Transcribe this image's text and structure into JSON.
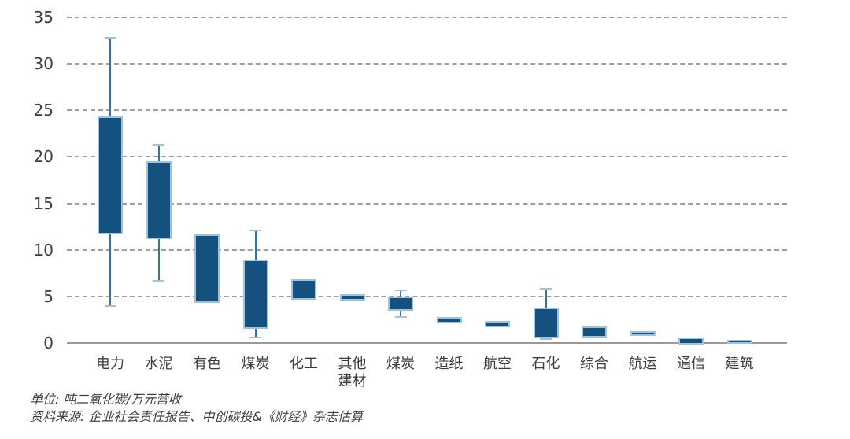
{
  "chart_data": {
    "type": "boxplot",
    "title": "",
    "unit_note": "单位: 吨二氧化碳/万元营收",
    "source_note": "资料来源: 企业社会责任报告、中创碳投&《财经》杂志估算",
    "ylabel": "",
    "xlabel": "",
    "ylim": [
      0,
      35
    ],
    "yticks": [
      0,
      5,
      10,
      15,
      20,
      25,
      30,
      35
    ],
    "grid": "horizontal-dashed",
    "legend": "none",
    "categories": [
      "电力",
      "水泥",
      "有色",
      "煤炭",
      "化工",
      "其他\n建材",
      "煤炭",
      "造纸",
      "航空",
      "石化",
      "综合",
      "航运",
      "通信",
      "建筑"
    ],
    "bars": [
      {
        "label": "电力",
        "box_low": 11.8,
        "box_high": 24.2,
        "whisker_low": 4.0,
        "whisker_high": 32.8
      },
      {
        "label": "水泥",
        "box_low": 11.3,
        "box_high": 19.4,
        "whisker_low": 6.7,
        "whisker_high": 21.3
      },
      {
        "label": "有色",
        "box_low": 4.5,
        "box_high": 11.5,
        "whisker_low": null,
        "whisker_high": null
      },
      {
        "label": "煤炭",
        "box_low": 1.7,
        "box_high": 8.8,
        "whisker_low": 0.6,
        "whisker_high": 12.1
      },
      {
        "label": "化工",
        "box_low": 4.8,
        "box_high": 6.7,
        "whisker_low": null,
        "whisker_high": null
      },
      {
        "label": "其他\n建材",
        "box_low": 4.75,
        "box_high": 5.05,
        "whisker_low": null,
        "whisker_high": null
      },
      {
        "label": "煤炭",
        "box_low": 3.65,
        "box_high": 4.8,
        "whisker_low": 2.75,
        "whisker_high": 5.7
      },
      {
        "label": "造纸",
        "box_low": 2.3,
        "box_high": 2.6,
        "whisker_low": null,
        "whisker_high": null
      },
      {
        "label": "航空",
        "box_low": 1.85,
        "box_high": 2.2,
        "whisker_low": null,
        "whisker_high": null
      },
      {
        "label": "石化",
        "box_low": 0.65,
        "box_high": 3.6,
        "whisker_low": 0.4,
        "whisker_high": 5.8
      },
      {
        "label": "综合",
        "box_low": 0.8,
        "box_high": 1.6,
        "whisker_low": null,
        "whisker_high": null
      },
      {
        "label": "航运",
        "box_low": 0.9,
        "box_high": 1.1,
        "whisker_low": null,
        "whisker_high": null
      },
      {
        "label": "通信",
        "box_low": 0.0,
        "box_high": 0.45,
        "whisker_low": null,
        "whisker_high": null
      },
      {
        "label": "建筑",
        "box_low": 0.05,
        "box_high": 0.2,
        "whisker_low": null,
        "whisker_high": null
      }
    ],
    "colors": {
      "bar_fill": "#15517E",
      "bar_border": "#9DC3E0",
      "whisker_line": "#2E74B5",
      "whisker_cap": "#9DC3E0",
      "gridline": "#8F8F8F",
      "axis_line": "#9B9B9B",
      "text": "#3D3D3D"
    }
  }
}
